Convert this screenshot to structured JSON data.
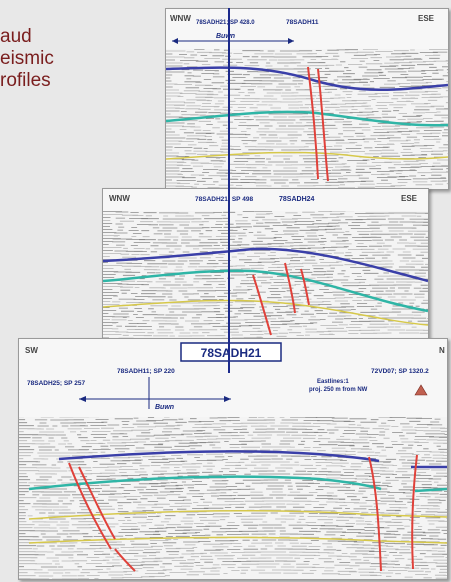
{
  "title": {
    "lines": [
      "aud",
      "eismic",
      "rofiles"
    ]
  },
  "panels": [
    {
      "id": "p1",
      "dir_left": "WNW",
      "dir_right": "ESE",
      "labels": [
        "78SADH21; SP 428.0",
        "78SADH11"
      ],
      "span_label": "Buwn"
    },
    {
      "id": "p2",
      "dir_left": "WNW",
      "dir_right": "ESE",
      "labels": [
        "78SADH21; SP 498",
        "78SADH24"
      ]
    },
    {
      "id": "p3",
      "dir_left": "SW",
      "dir_right": "N",
      "line_name": "78SADH21",
      "labels": [
        "78SADH11; SP 220",
        "78SADH25; SP 257",
        "72VD07; SP 1320.2"
      ],
      "note_lines": [
        "Eastlines:1",
        "proj. 250 m from NW"
      ],
      "span_label": "Buwn"
    }
  ],
  "colors": {
    "title": "#7a1e1e",
    "line_marker": "#1c2a8c",
    "horizon_blue": "#3a3fa8",
    "horizon_teal": "#2fb5a6",
    "horizon_yellow": "#d6c84a",
    "fault": "#e0413a"
  }
}
